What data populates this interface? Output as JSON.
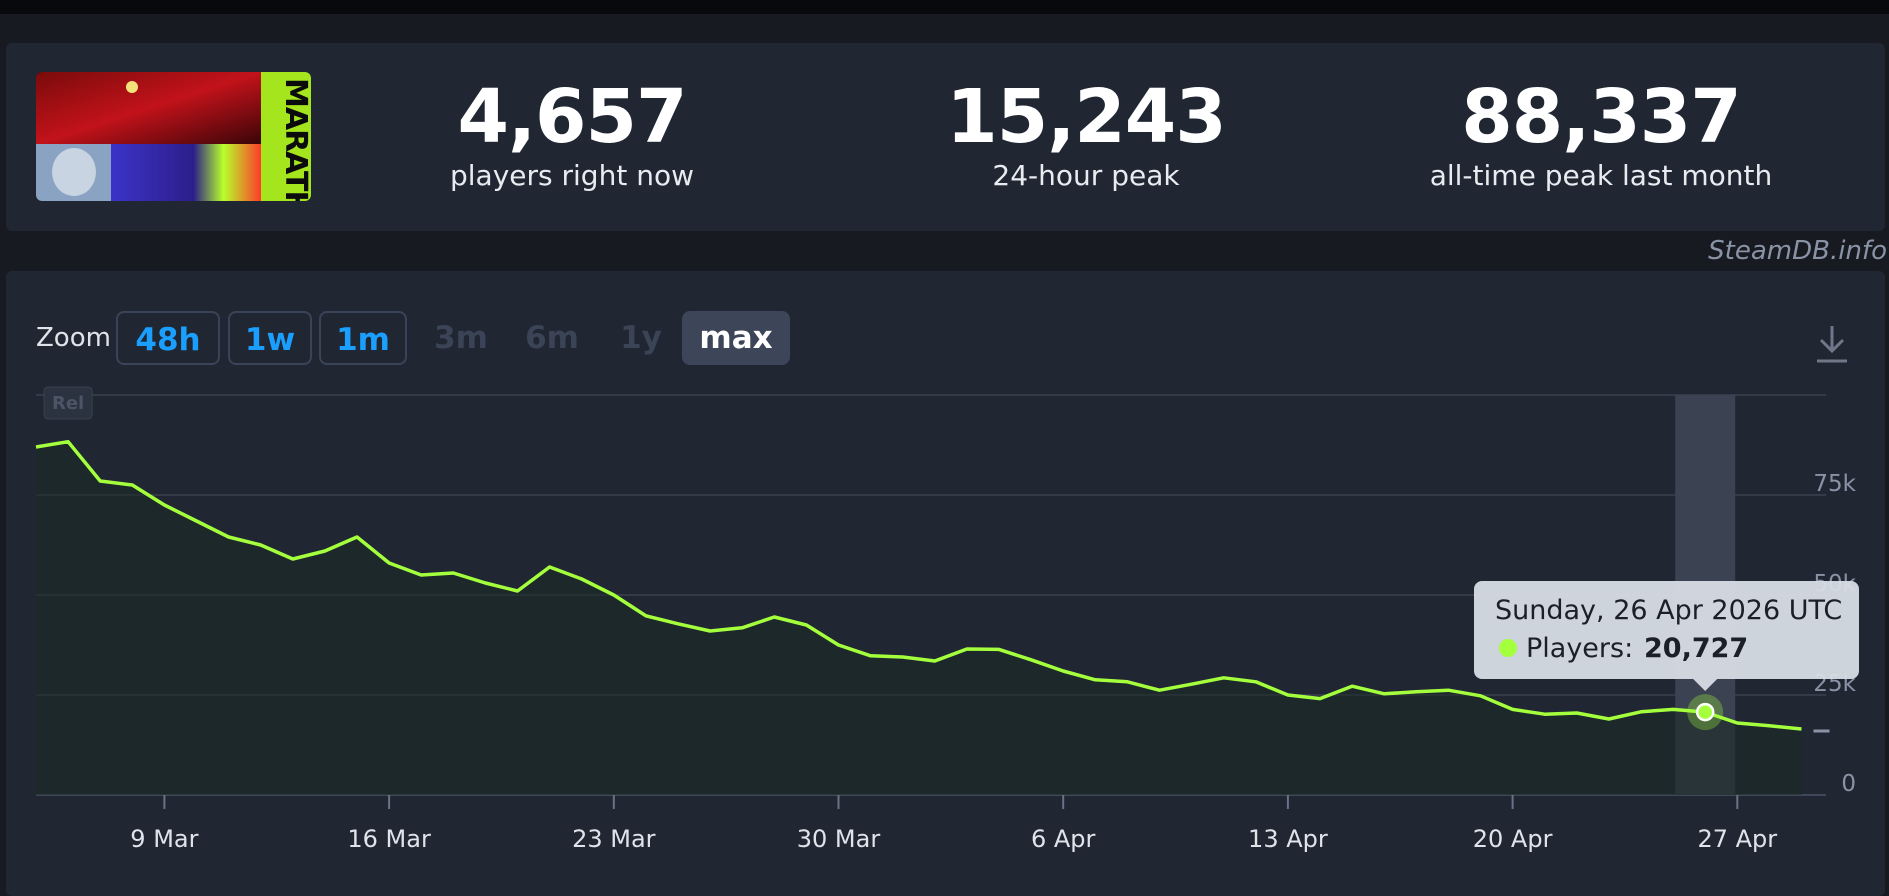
{
  "stats": [
    {
      "value": "4,657",
      "label": "players right now"
    },
    {
      "value": "15,243",
      "label": "24-hour peak"
    },
    {
      "value": "88,337",
      "label": "all-time peak last month"
    }
  ],
  "cover": {
    "title_text": "MARATHON"
  },
  "watermark": "SteamDB.info",
  "zoom": {
    "label": "Zoom",
    "buttons": [
      {
        "label": "48h",
        "state": "enabled"
      },
      {
        "label": "1w",
        "state": "enabled"
      },
      {
        "label": "1m",
        "state": "enabled"
      },
      {
        "label": "3m",
        "state": "disabled"
      },
      {
        "label": "6m",
        "state": "disabled"
      },
      {
        "label": "1y",
        "state": "disabled"
      },
      {
        "label": "max",
        "state": "active"
      }
    ]
  },
  "chart_data": {
    "type": "line",
    "ylim": [
      0,
      100000
    ],
    "y_ticks": [
      {
        "value": 0,
        "label": "0"
      },
      {
        "value": 25000,
        "label": "25k"
      },
      {
        "value": 50000,
        "label": "50k"
      },
      {
        "value": 75000,
        "label": "75k"
      }
    ],
    "x_range": [
      "2026-03-05",
      "2026-04-30"
    ],
    "x_ticks": [
      {
        "date": "2026-03-09",
        "label": "9 Mar"
      },
      {
        "date": "2026-03-16",
        "label": "16 Mar"
      },
      {
        "date": "2026-03-23",
        "label": "23 Mar"
      },
      {
        "date": "2026-03-30",
        "label": "30 Mar"
      },
      {
        "date": "2026-04-06",
        "label": "6 Apr"
      },
      {
        "date": "2026-04-13",
        "label": "13 Apr"
      },
      {
        "date": "2026-04-20",
        "label": "20 Apr"
      },
      {
        "date": "2026-04-27",
        "label": "27 Apr"
      }
    ],
    "release_marker": {
      "date": "2026-03-06",
      "label": "Rel"
    },
    "grid": true,
    "line_color": "#a4ff3d",
    "series": [
      {
        "x": [
          "2026-03-05",
          "2026-03-06",
          "2026-03-07",
          "2026-03-08",
          "2026-03-09",
          "2026-03-10",
          "2026-03-11",
          "2026-03-12",
          "2026-03-13",
          "2026-03-14",
          "2026-03-15",
          "2026-03-16",
          "2026-03-17",
          "2026-03-18",
          "2026-03-19",
          "2026-03-20",
          "2026-03-21",
          "2026-03-22",
          "2026-03-23",
          "2026-03-24",
          "2026-03-25",
          "2026-03-26",
          "2026-03-27",
          "2026-03-28",
          "2026-03-29",
          "2026-03-30",
          "2026-03-31",
          "2026-04-01",
          "2026-04-02",
          "2026-04-03",
          "2026-04-04",
          "2026-04-05",
          "2026-04-06",
          "2026-04-07",
          "2026-04-08",
          "2026-04-09",
          "2026-04-10",
          "2026-04-11",
          "2026-04-12",
          "2026-04-13",
          "2026-04-14",
          "2026-04-15",
          "2026-04-16",
          "2026-04-17",
          "2026-04-18",
          "2026-04-19",
          "2026-04-20",
          "2026-04-21",
          "2026-04-22",
          "2026-04-23",
          "2026-04-24",
          "2026-04-25",
          "2026-04-26",
          "2026-04-27",
          "2026-04-28",
          "2026-04-29"
        ],
        "values": [
          87000,
          88337,
          78500,
          77500,
          72500,
          68500,
          64500,
          62500,
          59000,
          61000,
          64500,
          58000,
          55000,
          55500,
          53000,
          51000,
          57000,
          54000,
          50000,
          44800,
          42800,
          41000,
          41800,
          44500,
          42500,
          37500,
          34800,
          34500,
          33500,
          36500,
          36400,
          33800,
          31000,
          28800,
          28300,
          26200,
          27700,
          29300,
          28300,
          25000,
          24100,
          27200,
          25300,
          25800,
          26200,
          24800,
          21400,
          20200,
          20500,
          19000,
          20800,
          21400,
          20727,
          18000,
          17300,
          16500
        ]
      }
    ],
    "tooltip": {
      "date_text": "Sunday, 26 Apr 2026 UTC",
      "series_label": "Players:",
      "value_text": "20,727",
      "x": "2026-04-26",
      "y": 20727
    },
    "last_partial_marker": {
      "value": 16500
    }
  }
}
